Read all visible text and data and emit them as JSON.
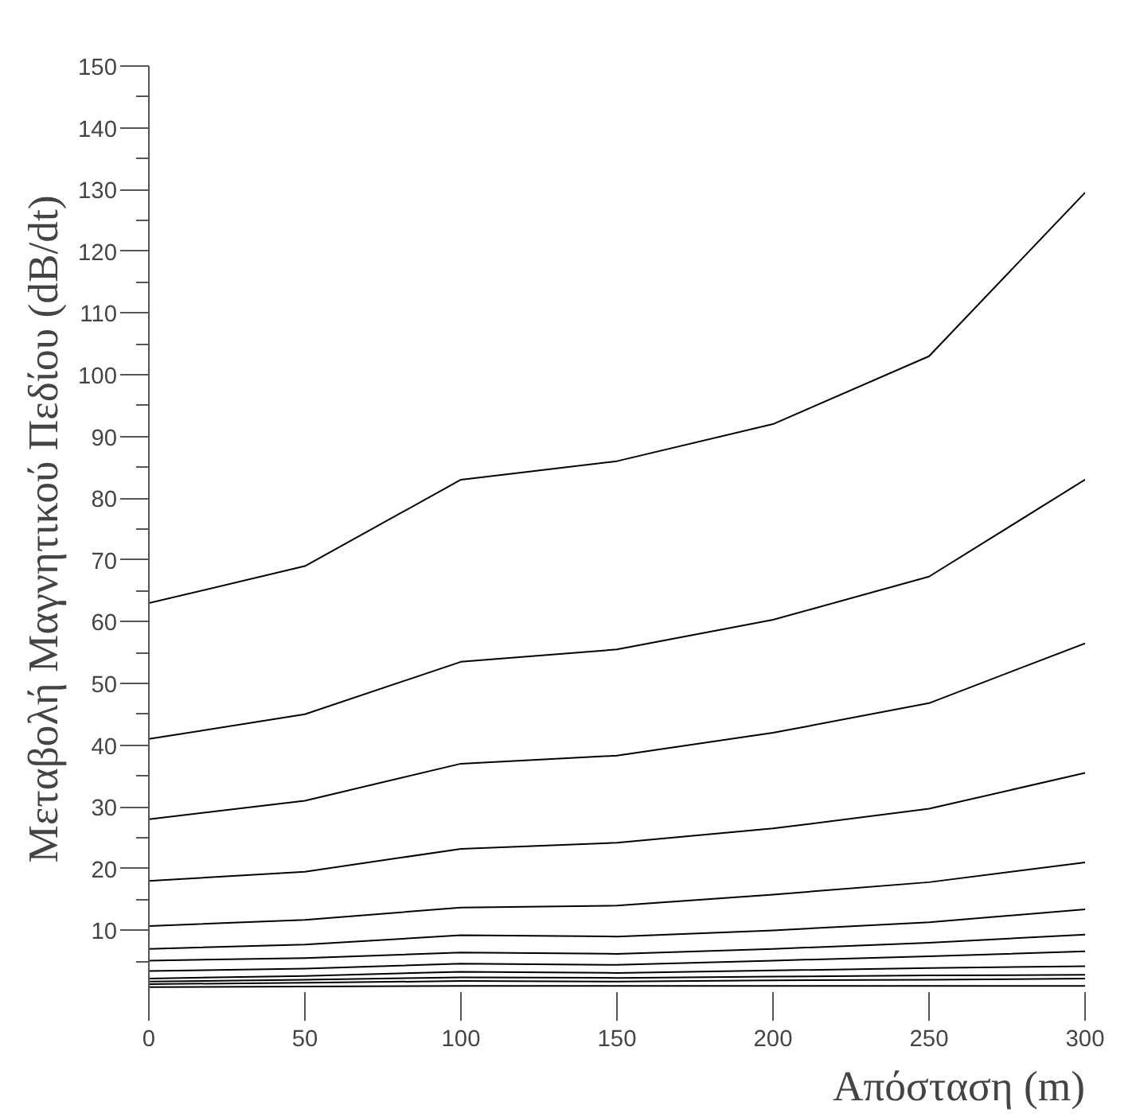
{
  "chart_data": {
    "type": "line",
    "xlabel": "Απόσταση (m)",
    "ylabel": "Μεταβολή Μαγνητικού Πεδίου (dB/dt)",
    "x": [
      0,
      50,
      100,
      150,
      200,
      250,
      300
    ],
    "series": [
      {
        "color": "#000000",
        "values": [
          63,
          69,
          83,
          86,
          92,
          103,
          129.5
        ]
      },
      {
        "color": "#000000",
        "values": [
          41,
          45,
          53.5,
          55.5,
          60.3,
          67.3,
          83
        ]
      },
      {
        "color": "#000000",
        "values": [
          28,
          31,
          37,
          38.3,
          42,
          46.8,
          56.5
        ]
      },
      {
        "color": "#000000",
        "values": [
          18,
          19.5,
          23.2,
          24.2,
          26.5,
          29.7,
          35.5
        ]
      },
      {
        "color": "#000000",
        "values": [
          10.7,
          11.7,
          13.7,
          14,
          15.8,
          17.8,
          21
        ]
      },
      {
        "color": "#000000",
        "values": [
          7,
          7.7,
          9.2,
          9,
          10,
          11.3,
          13.4
        ]
      },
      {
        "color": "#000000",
        "values": [
          5.1,
          5.5,
          6.4,
          6.2,
          7,
          8,
          9.3
        ]
      },
      {
        "color": "#000000",
        "values": [
          3.4,
          3.8,
          4.6,
          4.4,
          5.1,
          5.8,
          6.6
        ]
      },
      {
        "color": "#000000",
        "values": [
          2.2,
          2.6,
          3.3,
          3.1,
          3.5,
          3.9,
          4.2
        ]
      },
      {
        "color": "#000000",
        "values": [
          1.7,
          2,
          2.4,
          2.3,
          2.5,
          2.7,
          2.8
        ]
      },
      {
        "color": "#000000",
        "values": [
          1.3,
          1.5,
          1.8,
          1.7,
          1.9,
          2,
          2.2
        ]
      },
      {
        "color": "#000000",
        "values": [
          0.8,
          0.9,
          1,
          1,
          1,
          1,
          1
        ]
      }
    ],
    "xlim": [
      0,
      300
    ],
    "ylim": [
      0,
      150
    ],
    "xticks": [
      0,
      50,
      100,
      150,
      200,
      250,
      300
    ],
    "yticks": [
      {
        "value": 5,
        "label": null
      },
      10,
      {
        "value": 15,
        "label": null
      },
      20,
      {
        "value": 25,
        "label": null
      },
      30,
      {
        "value": 35,
        "label": null
      },
      40,
      {
        "value": 45,
        "label": null
      },
      50,
      {
        "value": 55,
        "label": null
      },
      60,
      {
        "value": 65,
        "label": null
      },
      70,
      {
        "value": 75,
        "label": null
      },
      80,
      {
        "value": 85,
        "label": null
      },
      90,
      {
        "value": 95,
        "label": null
      },
      100,
      {
        "value": 105,
        "label": null
      },
      110,
      {
        "value": 115,
        "label": null
      },
      120,
      {
        "value": 125,
        "label": null
      },
      130,
      {
        "value": 135,
        "label": null
      },
      140,
      {
        "value": 145,
        "label": null
      },
      150
    ],
    "grid": false
  }
}
